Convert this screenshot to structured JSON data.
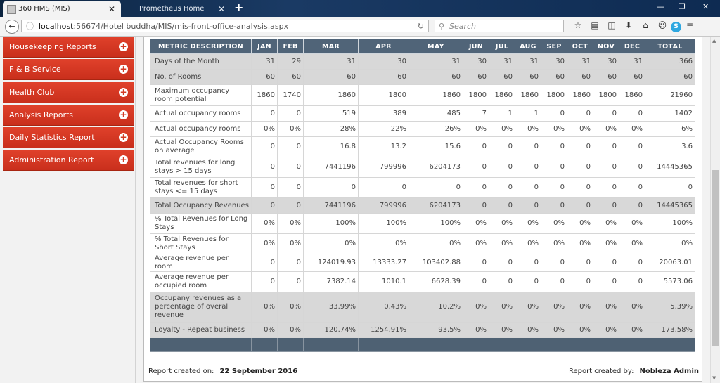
{
  "browser": {
    "active_tab": "360 HMS (MIS)",
    "inactive_tab": "Prometheus Home",
    "url_host": "localhost",
    "url_rest": ":56674/Hotel buddha/MIS/mis-front-office-analysis.aspx",
    "search_placeholder": "Search"
  },
  "sidebar": {
    "items": [
      {
        "label": "Housekeeping Reports"
      },
      {
        "label": "F & B Service"
      },
      {
        "label": "Health Club"
      },
      {
        "label": "Analysis Reports"
      },
      {
        "label": "Daily Statistics Report"
      },
      {
        "label": "Administration Report"
      }
    ]
  },
  "table": {
    "headers": [
      "METRIC DESCRIPTION",
      "JAN",
      "FEB",
      "MAR",
      "APR",
      "MAY",
      "JUN",
      "JUL",
      "AUG",
      "SEP",
      "OCT",
      "NOV",
      "DEC",
      "TOTAL"
    ],
    "rows": [
      {
        "shade": true,
        "cells": [
          "Days of the Month",
          "31",
          "29",
          "31",
          "30",
          "31",
          "30",
          "31",
          "31",
          "30",
          "31",
          "30",
          "31",
          "366"
        ]
      },
      {
        "shade": true,
        "cells": [
          "No. of Rooms",
          "60",
          "60",
          "60",
          "60",
          "60",
          "60",
          "60",
          "60",
          "60",
          "60",
          "60",
          "60",
          "60"
        ]
      },
      {
        "shade": false,
        "cells": [
          "Maximum occupancy room potential",
          "1860",
          "1740",
          "1860",
          "1800",
          "1860",
          "1800",
          "1860",
          "1860",
          "1800",
          "1860",
          "1800",
          "1860",
          "21960"
        ]
      },
      {
        "shade": false,
        "cells": [
          "Actual occupancy rooms",
          "0",
          "0",
          "519",
          "389",
          "485",
          "7",
          "1",
          "1",
          "0",
          "0",
          "0",
          "0",
          "1402"
        ]
      },
      {
        "shade": false,
        "cells": [
          "Actual occupancy rooms",
          "0%",
          "0%",
          "28%",
          "22%",
          "26%",
          "0%",
          "0%",
          "0%",
          "0%",
          "0%",
          "0%",
          "0%",
          "6%"
        ]
      },
      {
        "shade": false,
        "cells": [
          "Actual Occupancy Rooms on average",
          "0",
          "0",
          "16.8",
          "13.2",
          "15.6",
          "0",
          "0",
          "0",
          "0",
          "0",
          "0",
          "0",
          "3.6"
        ]
      },
      {
        "shade": false,
        "cells": [
          "Total revenues for long stays > 15 days",
          "0",
          "0",
          "7441196",
          "799996",
          "6204173",
          "0",
          "0",
          "0",
          "0",
          "0",
          "0",
          "0",
          "14445365"
        ]
      },
      {
        "shade": false,
        "cells": [
          "Total revenues for short stays <= 15 days",
          "0",
          "0",
          "0",
          "0",
          "0",
          "0",
          "0",
          "0",
          "0",
          "0",
          "0",
          "0",
          "0"
        ]
      },
      {
        "shade": true,
        "cells": [
          "Total Occupancy Revenues",
          "0",
          "0",
          "7441196",
          "799996",
          "6204173",
          "0",
          "0",
          "0",
          "0",
          "0",
          "0",
          "0",
          "14445365"
        ]
      },
      {
        "shade": false,
        "cells": [
          "% Total Revenues for Long Stays",
          "0%",
          "0%",
          "100%",
          "100%",
          "100%",
          "0%",
          "0%",
          "0%",
          "0%",
          "0%",
          "0%",
          "0%",
          "100%"
        ]
      },
      {
        "shade": false,
        "cells": [
          "% Total Revenues for Short Stays",
          "0%",
          "0%",
          "0%",
          "0%",
          "0%",
          "0%",
          "0%",
          "0%",
          "0%",
          "0%",
          "0%",
          "0%",
          "0%"
        ]
      },
      {
        "shade": false,
        "cells": [
          "Average revenue per room",
          "0",
          "0",
          "124019.93",
          "13333.27",
          "103402.88",
          "0",
          "0",
          "0",
          "0",
          "0",
          "0",
          "0",
          "20063.01"
        ]
      },
      {
        "shade": false,
        "cells": [
          "Average revenue per occupied room",
          "0",
          "0",
          "7382.14",
          "1010.1",
          "6628.39",
          "0",
          "0",
          "0",
          "0",
          "0",
          "0",
          "0",
          "5573.06"
        ]
      },
      {
        "shade": true,
        "cells": [
          "Occupany revenues as a percentage of overall revenue",
          "0%",
          "0%",
          "33.99%",
          "0.43%",
          "10.2%",
          "0%",
          "0%",
          "0%",
          "0%",
          "0%",
          "0%",
          "0%",
          "5.39%"
        ]
      },
      {
        "shade": true,
        "cells": [
          "Loyalty - Repeat business",
          "0%",
          "0%",
          "120.74%",
          "1254.91%",
          "93.5%",
          "0%",
          "0%",
          "0%",
          "0%",
          "0%",
          "0%",
          "0%",
          "173.58%"
        ]
      }
    ]
  },
  "footer": {
    "created_on_label": "Report created on:",
    "created_on_value": "22 September 2016",
    "created_by_label": "Report created by:",
    "created_by_value": "Nobleza Admin"
  },
  "colors": {
    "sidebar_red": "#d63a24",
    "header_slate": "#506478",
    "row_shade": "#d8d8d8"
  }
}
